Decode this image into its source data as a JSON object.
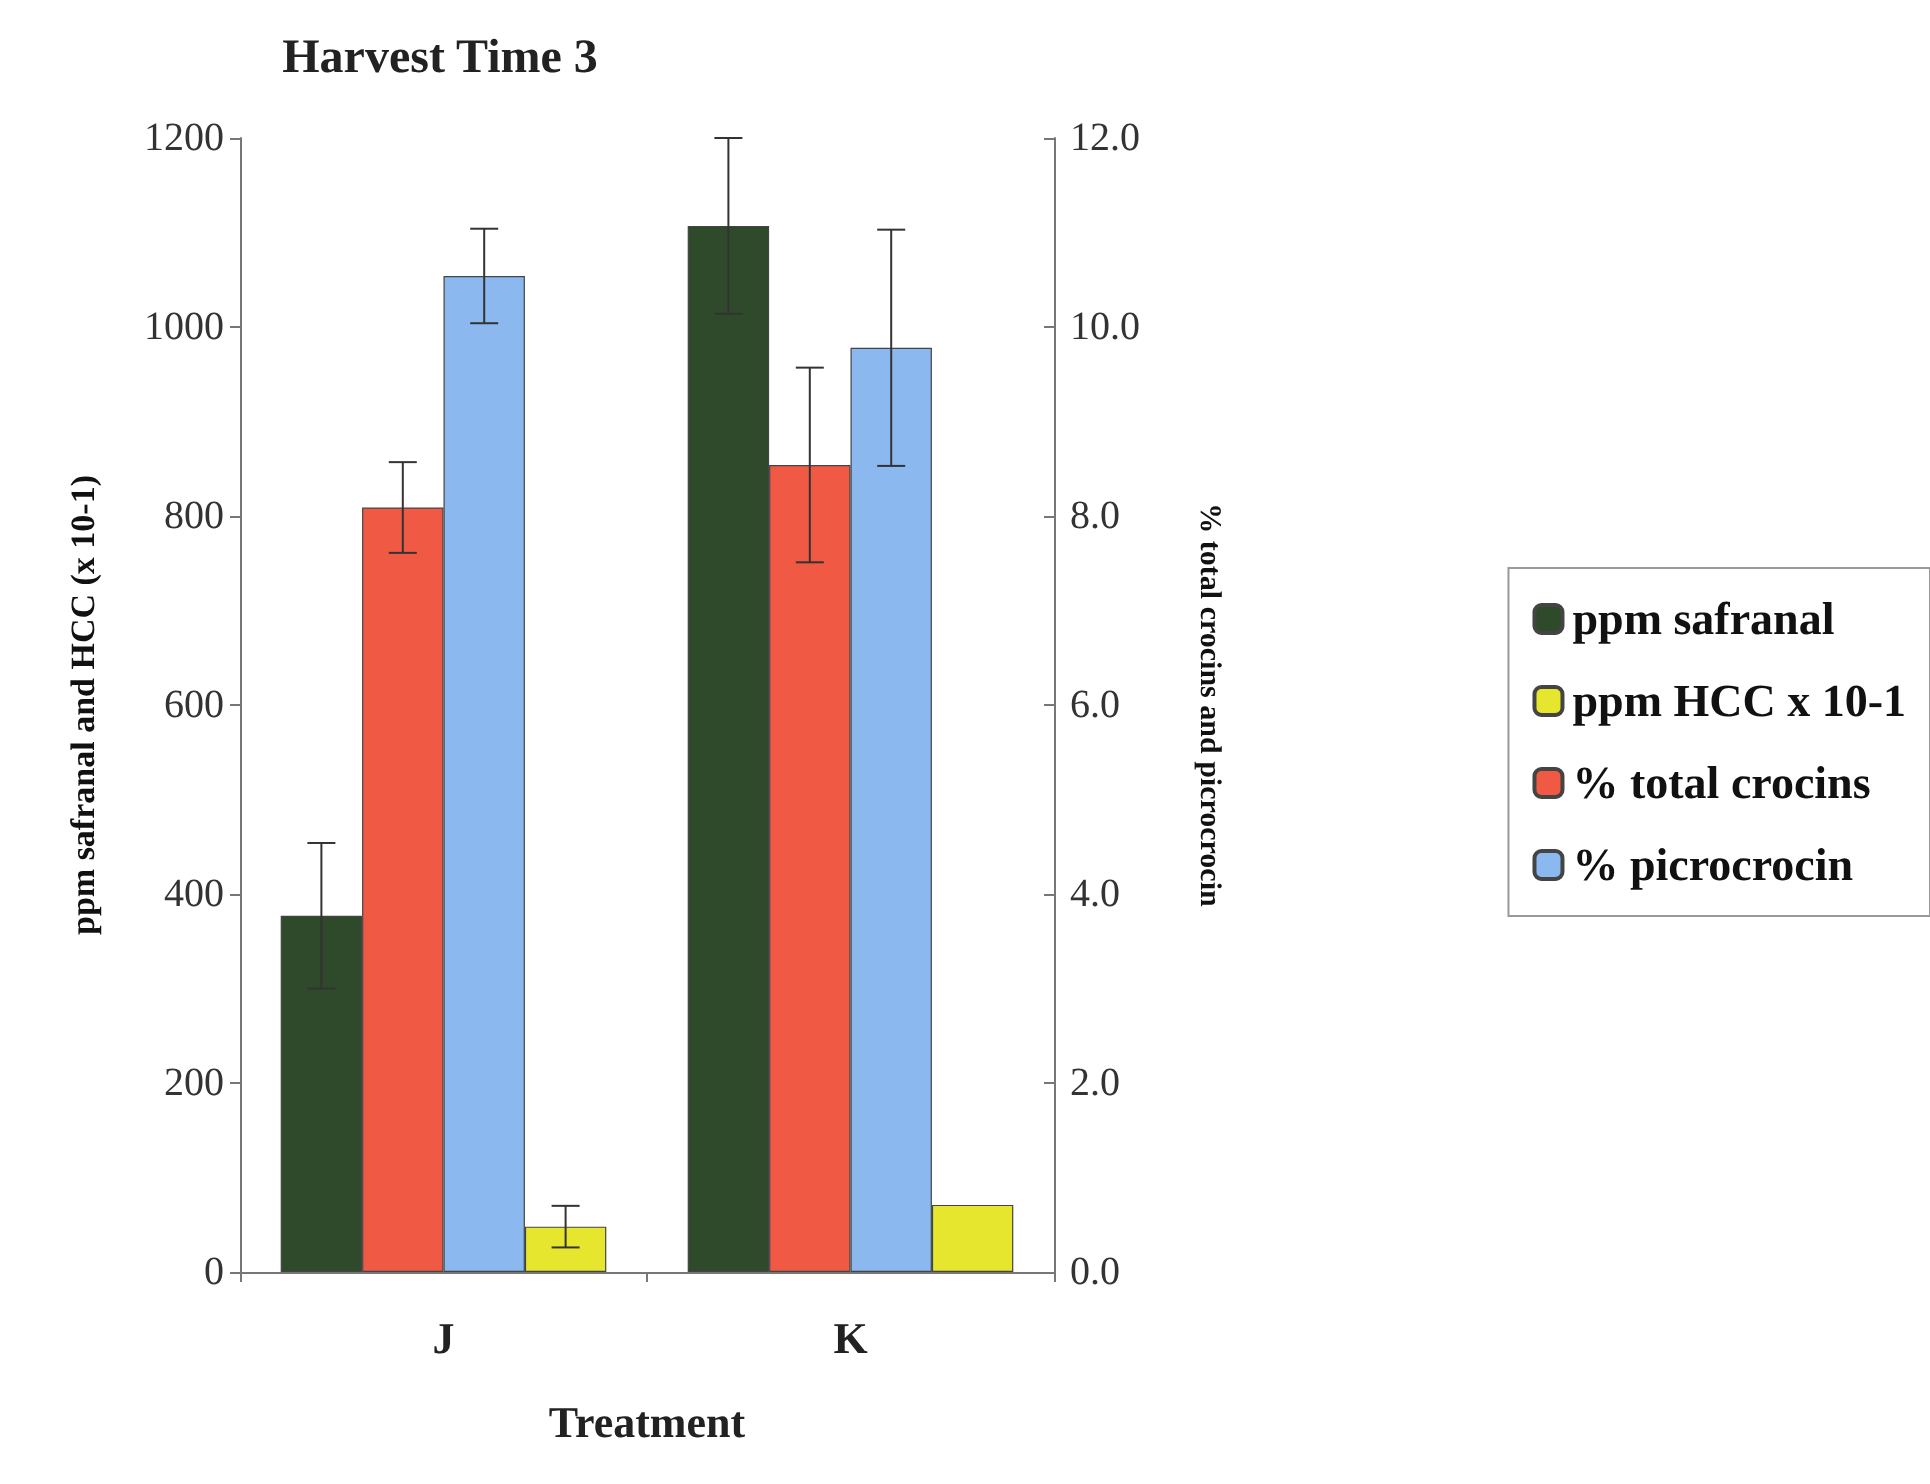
{
  "chart_data": {
    "type": "bar",
    "title": "Harvest Time 3",
    "xlabel": "Treatment",
    "ylabel": "ppm safranal and HCC (x 10-1)",
    "y2label": "% total crocins and picrocrocin",
    "categories": [
      "J",
      "K"
    ],
    "series": [
      {
        "name": "ppm safranal",
        "color": "#2f4a2a",
        "values": [
          377,
          1107
        ],
        "errors": [
          77,
          93
        ]
      },
      {
        "name": "% total crocins",
        "color": "#f05a45",
        "axis": "y2",
        "values": [
          8.09,
          8.54
        ],
        "errors": [
          0.48,
          1.03
        ]
      },
      {
        "name": "% picrocrocin",
        "color": "#8ab8ef",
        "axis": "y2",
        "values": [
          10.54,
          9.78
        ],
        "errors": [
          0.5,
          1.25
        ]
      },
      {
        "name": "ppm HCC x 10-1",
        "color": "#e6e62e",
        "values": [
          48,
          71
        ],
        "errors": [
          22,
          null
        ]
      }
    ],
    "ylim": [
      0,
      1200
    ],
    "yticks": [
      0,
      200,
      400,
      600,
      800,
      1000,
      1200
    ],
    "y2lim": [
      0,
      12
    ],
    "y2ticks": [
      {
        "value": 0,
        "label": "0.0"
      },
      {
        "value": 2,
        "label": "2.0"
      },
      {
        "value": 4,
        "label": "4.0"
      },
      {
        "value": 6,
        "label": "6.0"
      },
      {
        "value": 8,
        "label": "8.0"
      },
      {
        "value": 10,
        "label": "10.0"
      },
      {
        "value": 12,
        "label": "12.0"
      }
    ],
    "grid": false,
    "legend": "right"
  }
}
